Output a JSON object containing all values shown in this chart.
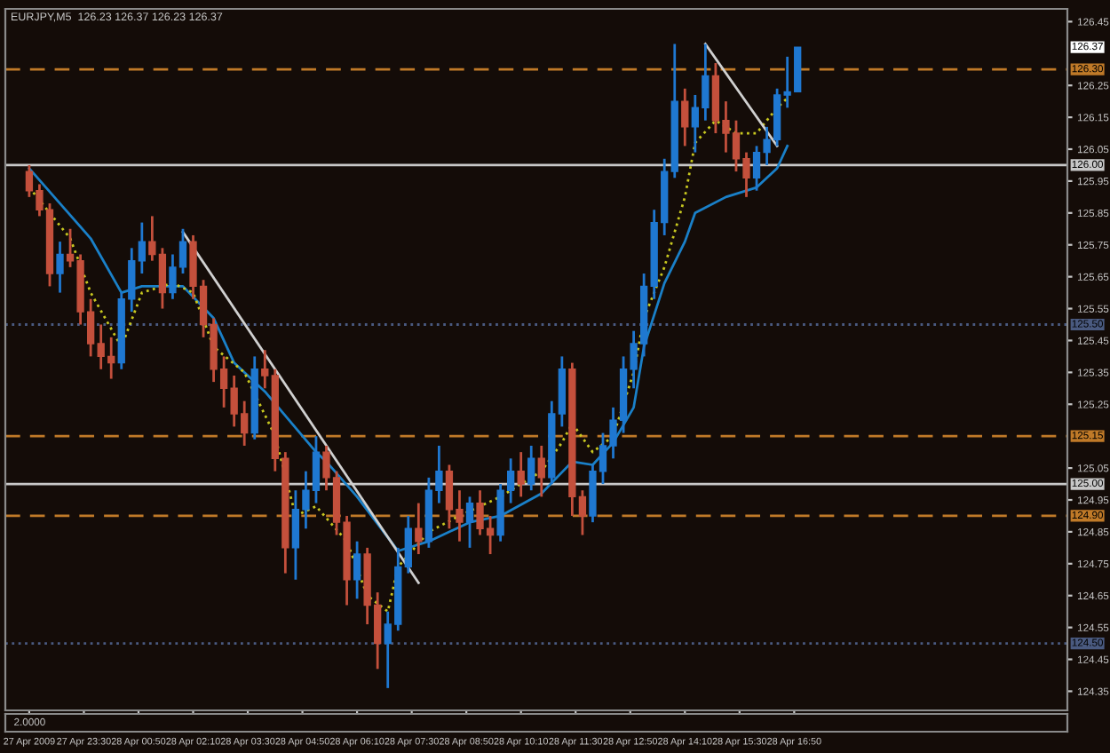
{
  "chart_data": {
    "type": "candlestick",
    "title": "EURJPY,M5  126.23 126.37 126.23 126.37",
    "x": [
      "2009-04-27T22:10",
      "2009-04-27T22:25",
      "2009-04-27T22:40",
      "2009-04-27T22:55",
      "2009-04-27T23:10",
      "2009-04-27T23:25",
      "2009-04-27T23:40",
      "2009-04-27T23:55",
      "2009-04-28T00:10",
      "2009-04-28T00:25",
      "2009-04-28T00:40",
      "2009-04-28T00:55",
      "2009-04-28T01:10",
      "2009-04-28T01:25",
      "2009-04-28T01:40",
      "2009-04-28T01:55",
      "2009-04-28T02:10",
      "2009-04-28T02:25",
      "2009-04-28T02:40",
      "2009-04-28T02:55",
      "2009-04-28T03:10",
      "2009-04-28T03:25",
      "2009-04-28T03:40",
      "2009-04-28T03:55",
      "2009-04-28T04:10",
      "2009-04-28T04:25",
      "2009-04-28T04:40",
      "2009-04-28T04:55",
      "2009-04-28T05:10",
      "2009-04-28T05:25",
      "2009-04-28T05:40",
      "2009-04-28T05:55",
      "2009-04-28T06:10",
      "2009-04-28T06:25",
      "2009-04-28T06:40",
      "2009-04-28T06:55",
      "2009-04-28T07:10",
      "2009-04-28T07:25",
      "2009-04-28T07:40",
      "2009-04-28T07:55",
      "2009-04-28T08:10",
      "2009-04-28T08:25",
      "2009-04-28T08:40",
      "2009-04-28T08:55",
      "2009-04-28T09:10",
      "2009-04-28T09:25",
      "2009-04-28T09:40",
      "2009-04-28T09:55",
      "2009-04-28T10:10",
      "2009-04-28T10:25",
      "2009-04-28T10:40",
      "2009-04-28T10:55",
      "2009-04-28T11:10",
      "2009-04-28T11:25",
      "2009-04-28T11:40",
      "2009-04-28T11:55",
      "2009-04-28T12:10",
      "2009-04-28T12:25",
      "2009-04-28T12:40",
      "2009-04-28T12:55",
      "2009-04-28T13:10",
      "2009-04-28T13:25",
      "2009-04-28T13:40",
      "2009-04-28T13:55",
      "2009-04-28T14:10",
      "2009-04-28T14:25",
      "2009-04-28T14:40",
      "2009-04-28T14:55",
      "2009-04-28T15:10",
      "2009-04-28T15:25",
      "2009-04-28T15:40",
      "2009-04-28T15:55",
      "2009-04-28T16:10",
      "2009-04-28T16:25",
      "2009-04-28T16:40",
      "2009-04-28T16:55"
    ],
    "ohlc": [
      [
        125.98,
        126.0,
        125.9,
        125.92
      ],
      [
        125.92,
        125.94,
        125.84,
        125.86
      ],
      [
        125.86,
        125.88,
        125.62,
        125.66
      ],
      [
        125.66,
        125.76,
        125.6,
        125.72
      ],
      [
        125.72,
        125.8,
        125.68,
        125.7
      ],
      [
        125.7,
        125.72,
        125.5,
        125.54
      ],
      [
        125.54,
        125.58,
        125.4,
        125.44
      ],
      [
        125.44,
        125.5,
        125.36,
        125.4
      ],
      [
        125.4,
        125.46,
        125.33,
        125.38
      ],
      [
        125.38,
        125.6,
        125.36,
        125.58
      ],
      [
        125.58,
        125.74,
        125.54,
        125.7
      ],
      [
        125.7,
        125.82,
        125.66,
        125.76
      ],
      [
        125.76,
        125.84,
        125.7,
        125.72
      ],
      [
        125.72,
        125.74,
        125.55,
        125.6
      ],
      [
        125.6,
        125.72,
        125.58,
        125.68
      ],
      [
        125.68,
        125.8,
        125.66,
        125.76
      ],
      [
        125.76,
        125.78,
        125.58,
        125.62
      ],
      [
        125.62,
        125.64,
        125.46,
        125.5
      ],
      [
        125.5,
        125.52,
        125.32,
        125.36
      ],
      [
        125.36,
        125.4,
        125.24,
        125.3
      ],
      [
        125.3,
        125.34,
        125.18,
        125.22
      ],
      [
        125.22,
        125.26,
        125.12,
        125.16
      ],
      [
        125.16,
        125.4,
        125.14,
        125.36
      ],
      [
        125.36,
        125.42,
        125.3,
        125.34
      ],
      [
        125.34,
        125.36,
        125.04,
        125.08
      ],
      [
        125.08,
        125.1,
        124.72,
        124.8
      ],
      [
        124.8,
        124.98,
        124.7,
        124.92
      ],
      [
        124.92,
        125.04,
        124.86,
        124.98
      ],
      [
        124.98,
        125.15,
        124.94,
        125.1
      ],
      [
        125.1,
        125.12,
        124.98,
        125.02
      ],
      [
        125.02,
        125.04,
        124.84,
        124.88
      ],
      [
        124.88,
        124.9,
        124.62,
        124.7
      ],
      [
        124.7,
        124.82,
        124.64,
        124.78
      ],
      [
        124.78,
        124.8,
        124.56,
        124.62
      ],
      [
        124.62,
        124.66,
        124.42,
        124.5
      ],
      [
        124.5,
        124.6,
        124.36,
        124.56
      ],
      [
        124.56,
        124.8,
        124.54,
        124.74
      ],
      [
        124.74,
        124.9,
        124.72,
        124.86
      ],
      [
        124.86,
        124.94,
        124.78,
        124.82
      ],
      [
        124.82,
        125.02,
        124.8,
        124.98
      ],
      [
        124.98,
        125.12,
        124.94,
        125.04
      ],
      [
        125.04,
        125.06,
        124.86,
        124.92
      ],
      [
        124.92,
        124.98,
        124.82,
        124.88
      ],
      [
        124.88,
        124.96,
        124.8,
        124.94
      ],
      [
        124.94,
        124.98,
        124.84,
        124.86
      ],
      [
        124.86,
        124.9,
        124.78,
        124.84
      ],
      [
        124.84,
        125.0,
        124.82,
        124.98
      ],
      [
        124.98,
        125.08,
        124.94,
        125.04
      ],
      [
        125.04,
        125.1,
        124.96,
        125.0
      ],
      [
        125.0,
        125.12,
        124.98,
        125.08
      ],
      [
        125.08,
        125.12,
        124.96,
        125.02
      ],
      [
        125.02,
        125.26,
        125.0,
        125.22
      ],
      [
        125.22,
        125.4,
        125.18,
        125.36
      ],
      [
        125.36,
        125.38,
        124.9,
        124.96
      ],
      [
        124.96,
        124.98,
        124.84,
        124.9
      ],
      [
        124.9,
        125.06,
        124.88,
        125.04
      ],
      [
        125.04,
        125.16,
        125.0,
        125.12
      ],
      [
        125.12,
        125.24,
        125.08,
        125.2
      ],
      [
        125.2,
        125.4,
        125.16,
        125.36
      ],
      [
        125.36,
        125.48,
        125.3,
        125.44
      ],
      [
        125.44,
        125.66,
        125.4,
        125.62
      ],
      [
        125.62,
        125.86,
        125.58,
        125.82
      ],
      [
        125.82,
        126.02,
        125.78,
        125.98
      ],
      [
        125.98,
        126.38,
        125.96,
        126.2
      ],
      [
        126.2,
        126.24,
        126.06,
        126.12
      ],
      [
        126.12,
        126.22,
        126.04,
        126.18
      ],
      [
        126.18,
        126.38,
        126.14,
        126.28
      ],
      [
        126.28,
        126.32,
        126.1,
        126.14
      ],
      [
        126.14,
        126.2,
        126.04,
        126.1
      ],
      [
        126.1,
        126.14,
        125.98,
        126.02
      ],
      [
        126.02,
        126.04,
        125.9,
        125.96
      ],
      [
        125.96,
        126.06,
        125.92,
        126.04
      ],
      [
        126.04,
        126.12,
        126.0,
        126.08
      ],
      [
        126.08,
        126.24,
        126.06,
        126.22
      ],
      [
        126.22,
        126.34,
        126.18,
        126.23
      ],
      [
        126.23,
        126.37,
        126.23,
        126.37
      ]
    ],
    "colors": [
      "#c4503c",
      "#c4503c",
      "#c4503c",
      "#1f78d1",
      "#c4503c",
      "#c4503c",
      "#c4503c",
      "#c4503c",
      "#c4503c",
      "#1f78d1",
      "#1f78d1",
      "#1f78d1",
      "#c4503c",
      "#c4503c",
      "#1f78d1",
      "#1f78d1",
      "#c4503c",
      "#c4503c",
      "#c4503c",
      "#c4503c",
      "#c4503c",
      "#c4503c",
      "#1f78d1",
      "#c4503c",
      "#c4503c",
      "#c4503c",
      "#1f78d1",
      "#1f78d1",
      "#1f78d1",
      "#c4503c",
      "#c4503c",
      "#c4503c",
      "#1f78d1",
      "#c4503c",
      "#c4503c",
      "#1f78d1",
      "#1f78d1",
      "#1f78d1",
      "#c4503c",
      "#1f78d1",
      "#1f78d1",
      "#c4503c",
      "#c4503c",
      "#1f78d1",
      "#c4503c",
      "#c4503c",
      "#1f78d1",
      "#1f78d1",
      "#c4503c",
      "#1f78d1",
      "#c4503c",
      "#1f78d1",
      "#1f78d1",
      "#c4503c",
      "#c4503c",
      "#1f78d1",
      "#1f78d1",
      "#1f78d1",
      "#1f78d1",
      "#1f78d1",
      "#1f78d1",
      "#1f78d1",
      "#1f78d1",
      "#1f78d1",
      "#c4503c",
      "#1f78d1",
      "#1f78d1",
      "#c4503c",
      "#c4503c",
      "#c4503c",
      "#c4503c",
      "#1f78d1",
      "#1f78d1",
      "#1f78d1",
      "#1f78d1",
      "#1f78d1"
    ],
    "series": [
      {
        "type": "line",
        "color": "#1a80c8",
        "line_style": "solid",
        "x": [
          "2009-04-27T22:10",
          "2009-04-27T22:55",
          "2009-04-27T23:40",
          "2009-04-28T00:25",
          "2009-04-28T00:55",
          "2009-04-28T01:55",
          "2009-04-28T02:40",
          "2009-04-28T03:10",
          "2009-04-28T03:55",
          "2009-04-28T05:10",
          "2009-04-28T05:25",
          "2009-04-28T06:10",
          "2009-04-28T07:10",
          "2009-04-28T07:55",
          "2009-04-28T08:55",
          "2009-04-28T09:40",
          "2009-04-28T10:40",
          "2009-04-28T11:25",
          "2009-04-28T11:55",
          "2009-04-28T12:25",
          "2009-04-28T12:55",
          "2009-04-28T13:10",
          "2009-04-28T13:40",
          "2009-04-28T14:10",
          "2009-04-28T14:25",
          "2009-04-28T15:10",
          "2009-04-28T15:55",
          "2009-04-28T16:25",
          "2009-04-28T16:40"
        ],
        "values": [
          125.99,
          125.88,
          125.77,
          125.6,
          125.62,
          125.62,
          125.52,
          125.38,
          125.29,
          125.1,
          125.07,
          124.96,
          124.79,
          124.82,
          124.88,
          124.9,
          124.97,
          125.07,
          125.06,
          125.13,
          125.24,
          125.43,
          125.63,
          125.76,
          125.85,
          125.9,
          125.93,
          125.99,
          126.06
        ]
      },
      {
        "type": "line",
        "color": "#c8c820",
        "line_style": "dotted",
        "x": [
          "2009-04-27T22:10",
          "2009-04-27T23:10",
          "2009-04-27T23:40",
          "2009-04-28T00:25",
          "2009-04-28T00:55",
          "2009-04-28T01:40",
          "2009-04-28T02:10",
          "2009-04-28T02:40",
          "2009-04-28T03:25",
          "2009-04-28T04:10",
          "2009-04-28T04:40",
          "2009-04-28T05:10",
          "2009-04-28T05:55",
          "2009-04-28T06:25",
          "2009-04-28T06:55",
          "2009-04-28T07:10",
          "2009-04-28T07:55",
          "2009-04-28T08:40",
          "2009-04-28T09:40",
          "2009-04-28T10:40",
          "2009-04-28T11:10",
          "2009-04-28T11:25",
          "2009-04-28T11:55",
          "2009-04-28T12:25",
          "2009-04-28T12:55",
          "2009-04-28T13:10",
          "2009-04-28T13:40",
          "2009-04-28T14:10",
          "2009-04-28T14:25",
          "2009-04-28T14:55",
          "2009-04-28T15:25",
          "2009-04-28T15:55",
          "2009-04-28T16:25",
          "2009-04-28T16:40"
        ],
        "values": [
          125.93,
          125.77,
          125.6,
          125.43,
          125.6,
          125.63,
          125.6,
          125.43,
          125.35,
          125.15,
          124.9,
          124.93,
          124.82,
          124.65,
          124.6,
          124.74,
          124.85,
          124.9,
          124.96,
          125.04,
          125.13,
          125.19,
          125.1,
          125.15,
          125.35,
          125.52,
          125.68,
          125.9,
          126.07,
          126.14,
          126.1,
          126.1,
          126.18,
          126.21
        ]
      },
      {
        "type": "line",
        "color": "#d0d0d0",
        "line_style": "solid",
        "x": [
          "2009-04-28T01:55",
          "2009-04-28T07:40"
        ],
        "values": [
          125.79,
          124.69
        ]
      },
      {
        "type": "line",
        "color": "#d0d0d0",
        "line_style": "solid",
        "x": [
          "2009-04-28T14:40",
          "2009-04-28T16:25"
        ],
        "values": [
          126.38,
          126.06
        ]
      }
    ],
    "xlim": [
      "2009-04-27T21:35",
      "2009-04-28T23:30"
    ],
    "xticks": [
      {
        "value": "2009-04-27T22:10",
        "label": "27 Apr 2009"
      },
      {
        "value": "2009-04-27T23:30",
        "label": "27 Apr 23:30"
      },
      {
        "value": "2009-04-28T00:50",
        "label": "28 Apr 00:50"
      },
      {
        "value": "2009-04-28T02:10",
        "label": "28 Apr 02:10"
      },
      {
        "value": "2009-04-28T03:30",
        "label": "28 Apr 03:30"
      },
      {
        "value": "2009-04-28T04:50",
        "label": "28 Apr 04:50"
      },
      {
        "value": "2009-04-28T06:10",
        "label": "28 Apr 06:10"
      },
      {
        "value": "2009-04-28T07:30",
        "label": "28 Apr 07:30"
      },
      {
        "value": "2009-04-28T08:50",
        "label": "28 Apr 08:50"
      },
      {
        "value": "2009-04-28T10:10",
        "label": "28 Apr 10:10"
      },
      {
        "value": "2009-04-28T11:30",
        "label": "28 Apr 11:30"
      },
      {
        "value": "2009-04-28T12:50",
        "label": "28 Apr 12:50"
      },
      {
        "value": "2009-04-28T14:10",
        "label": "28 Apr 14:10"
      },
      {
        "value": "2009-04-28T15:30",
        "label": "28 Apr 15:30"
      },
      {
        "value": "2009-04-28T16:50",
        "label": "28 Apr 16:50"
      }
    ],
    "ylim": [
      124.29,
      126.49
    ],
    "yticks": [
      {
        "value": 124.35,
        "label": "124.35"
      },
      {
        "value": 124.45,
        "label": "124.45"
      },
      {
        "value": 124.55,
        "label": "124.55"
      },
      {
        "value": 124.65,
        "label": "124.65"
      },
      {
        "value": 124.75,
        "label": "124.75"
      },
      {
        "value": 124.85,
        "label": "124.85"
      },
      {
        "value": 124.95,
        "label": "124.95"
      },
      {
        "value": 125.05,
        "label": "125.05"
      },
      {
        "value": 125.25,
        "label": "125.25"
      },
      {
        "value": 125.35,
        "label": "125.35"
      },
      {
        "value": 125.45,
        "label": "125.45"
      },
      {
        "value": 125.55,
        "label": "125.55"
      },
      {
        "value": 125.65,
        "label": "125.65"
      },
      {
        "value": 125.75,
        "label": "125.75"
      },
      {
        "value": 125.85,
        "label": "125.85"
      },
      {
        "value": 125.95,
        "label": "125.95"
      },
      {
        "value": 126.05,
        "label": "126.05"
      },
      {
        "value": 126.15,
        "label": "126.15"
      },
      {
        "value": 126.25,
        "label": "126.25"
      },
      {
        "value": 126.45,
        "label": "126.45"
      }
    ],
    "ref_lines": [
      {
        "axis": "y",
        "value": 126.3,
        "label": "126.30",
        "color": "#c07a28",
        "line_style": "dashed"
      },
      {
        "axis": "y",
        "value": 126.0,
        "label": "126.00",
        "color": "#c8c8c8",
        "line_style": "solid"
      },
      {
        "axis": "y",
        "value": 125.5,
        "label": "125.50",
        "color": "#4a5a80",
        "line_style": "dotted"
      },
      {
        "axis": "y",
        "value": 125.15,
        "label": "125.15",
        "color": "#c07a28",
        "line_style": "dashed"
      },
      {
        "axis": "y",
        "value": 125.0,
        "label": "125.00",
        "color": "#c8c8c8",
        "line_style": "solid"
      },
      {
        "axis": "y",
        "value": 124.9,
        "label": "124.90",
        "color": "#c07a28",
        "line_style": "dashed"
      },
      {
        "axis": "y",
        "value": 124.5,
        "label": "124.50",
        "color": "#4a5a80",
        "line_style": "dotted"
      }
    ],
    "annotations": [
      "126.37",
      "2.0000"
    ],
    "grid": false,
    "legend": false
  }
}
